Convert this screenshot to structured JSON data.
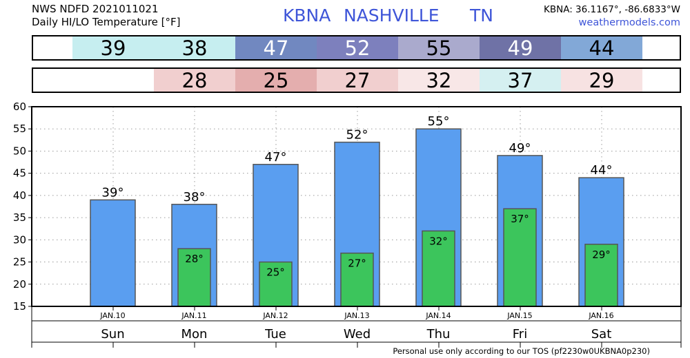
{
  "header": {
    "line1": "NWS NDFD 2021011021",
    "line2": "Daily HI/LO Temperature [°F]",
    "station": "KBNA",
    "city": "NASHVILLE",
    "state": "TN",
    "coords": "KBNA: 36.1167°, -86.6833°W",
    "site": "weathermodels.com"
  },
  "hi_strip": [
    {
      "value": "39",
      "bg": "#c6eef0",
      "fg": "#000000"
    },
    {
      "value": "38",
      "bg": "#c6eef0",
      "fg": "#000000"
    },
    {
      "value": "47",
      "bg": "#7188c0",
      "fg": "#ffffff"
    },
    {
      "value": "52",
      "bg": "#7d80bd",
      "fg": "#ffffff"
    },
    {
      "value": "55",
      "bg": "#aaaacd",
      "fg": "#000000"
    },
    {
      "value": "49",
      "bg": "#6f72a6",
      "fg": "#ffffff"
    },
    {
      "value": "44",
      "bg": "#82a8d7",
      "fg": "#000000"
    }
  ],
  "lo_strip": [
    {
      "value": "",
      "bg": "#ffffff",
      "fg": "#000000"
    },
    {
      "value": "28",
      "bg": "#f1cfcf",
      "fg": "#000000"
    },
    {
      "value": "25",
      "bg": "#e4aeae",
      "fg": "#000000"
    },
    {
      "value": "27",
      "bg": "#f1cfcf",
      "fg": "#000000"
    },
    {
      "value": "32",
      "bg": "#f8e7e7",
      "fg": "#000000"
    },
    {
      "value": "37",
      "bg": "#d5f0f1",
      "fg": "#000000"
    },
    {
      "value": "29",
      "bg": "#f7e2e2",
      "fg": "#000000"
    }
  ],
  "chart_data": {
    "type": "bar",
    "categories": [
      "Sun",
      "Mon",
      "Tue",
      "Wed",
      "Thu",
      "Fri",
      "Sat"
    ],
    "dates": [
      "JAN.10",
      "JAN.11",
      "JAN.12",
      "JAN.13",
      "JAN.14",
      "JAN.15",
      "JAN.16"
    ],
    "series": [
      {
        "values": [
          39,
          38,
          47,
          52,
          55,
          49,
          44
        ],
        "color": "#5a9ef0"
      },
      {
        "values": [
          null,
          28,
          25,
          27,
          32,
          37,
          29
        ],
        "color": "#3cc55c"
      }
    ],
    "hi_labels": [
      "39°",
      "38°",
      "47°",
      "52°",
      "55°",
      "49°",
      "44°"
    ],
    "lo_labels": [
      "",
      "28°",
      "25°",
      "27°",
      "32°",
      "37°",
      "29°"
    ],
    "ylim": [
      15,
      60
    ],
    "yticks": [
      15,
      20,
      25,
      30,
      35,
      40,
      45,
      50,
      55,
      60
    ],
    "grid": true
  },
  "footer": "Personal use only according to our TOS (pf2230w0UKBNA0p230)"
}
